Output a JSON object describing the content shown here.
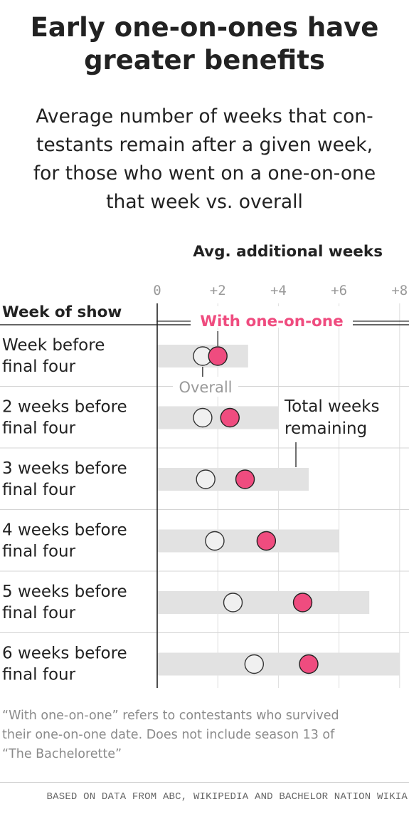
{
  "title": [
    "Early one-on-ones have",
    "greater benefits"
  ],
  "subtitle": [
    "Average number of weeks that con-",
    "testants remain after a given week,",
    "for those who went on a one-on-one",
    "that week vs. overall"
  ],
  "chart_data": {
    "type": "dot",
    "xlabel": "Avg. additional weeks",
    "row_header": "Week of show",
    "xlim": [
      0,
      8
    ],
    "ticks": [
      "0",
      "+2",
      "+4",
      "+6",
      "+8"
    ],
    "tick_values": [
      0,
      2,
      4,
      6,
      8
    ],
    "categories": [
      [
        "Week before",
        "final four"
      ],
      [
        "2 weeks before",
        "final four"
      ],
      [
        "3 weeks before",
        "final four"
      ],
      [
        "4 weeks before",
        "final four"
      ],
      [
        "5 weeks before",
        "final four"
      ],
      [
        "6 weeks before",
        "final four"
      ]
    ],
    "series": [
      {
        "name": "Total weeks remaining",
        "values": [
          3,
          4,
          5,
          6,
          7,
          8
        ]
      },
      {
        "name": "Overall",
        "values": [
          1.5,
          1.5,
          1.6,
          1.9,
          2.5,
          3.2
        ]
      },
      {
        "name": "With one-on-one",
        "values": [
          2.0,
          2.4,
          2.9,
          3.6,
          4.8,
          5.0
        ]
      }
    ],
    "annotations": {
      "with": "With one-on-one",
      "overall": "Overall",
      "total": [
        "Total weeks",
        "remaining"
      ]
    },
    "colors": {
      "with": "#ef4c7f",
      "overall": "#f0f0f0",
      "bar": "#e2e2e2",
      "grid": "#dedede",
      "axis": "#222222"
    },
    "grid": true
  },
  "note": [
    "“With one-on-one” refers to contestants who survived",
    "their one-on-one date. Does not include season 13 of",
    "“The Bachelorette”"
  ],
  "source": "BASED ON DATA FROM ABC, WIKIPEDIA AND BACHELOR NATION WIKIA"
}
